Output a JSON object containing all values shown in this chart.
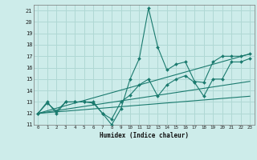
{
  "xlabel": "Humidex (Indice chaleur)",
  "background_color": "#cdecea",
  "grid_color": "#b0d8d4",
  "line_color": "#1a7a6e",
  "xlim": [
    -0.5,
    23.5
  ],
  "ylim": [
    11,
    21.5
  ],
  "xticks": [
    0,
    1,
    2,
    3,
    4,
    5,
    6,
    7,
    8,
    9,
    10,
    11,
    12,
    13,
    14,
    15,
    16,
    17,
    18,
    19,
    20,
    21,
    22,
    23
  ],
  "yticks": [
    11,
    12,
    13,
    14,
    15,
    16,
    17,
    18,
    19,
    20,
    21
  ],
  "lines": [
    {
      "x": [
        0,
        1,
        2,
        3,
        4,
        5,
        6,
        7,
        8,
        9,
        10,
        11,
        12,
        13,
        14,
        15,
        16,
        17,
        18,
        19,
        20,
        21,
        22,
        23
      ],
      "y": [
        12,
        13,
        12,
        13,
        13,
        13,
        13,
        12,
        11,
        12.4,
        15,
        16.8,
        21.2,
        17.8,
        15.8,
        16.3,
        16.5,
        14.8,
        14.7,
        16.5,
        17,
        17,
        17,
        17.2
      ],
      "markers": true
    },
    {
      "x": [
        0,
        1,
        2,
        3,
        4,
        5,
        6,
        7,
        8,
        9,
        10,
        11,
        12,
        13,
        14,
        15,
        16,
        17,
        18,
        19,
        20,
        21,
        22,
        23
      ],
      "y": [
        12,
        12.9,
        12.2,
        13,
        13,
        13,
        12.9,
        12,
        11.5,
        13,
        13.6,
        14.5,
        15,
        13.5,
        14.5,
        15,
        15.3,
        14.7,
        13.5,
        15,
        15,
        16.5,
        16.5,
        16.8
      ],
      "markers": true
    },
    {
      "x": [
        0,
        23
      ],
      "y": [
        12,
        17.2
      ],
      "markers": false
    },
    {
      "x": [
        0,
        23
      ],
      "y": [
        12,
        13.5
      ],
      "markers": false
    },
    {
      "x": [
        0,
        23
      ],
      "y": [
        12,
        14.8
      ],
      "markers": false
    }
  ]
}
